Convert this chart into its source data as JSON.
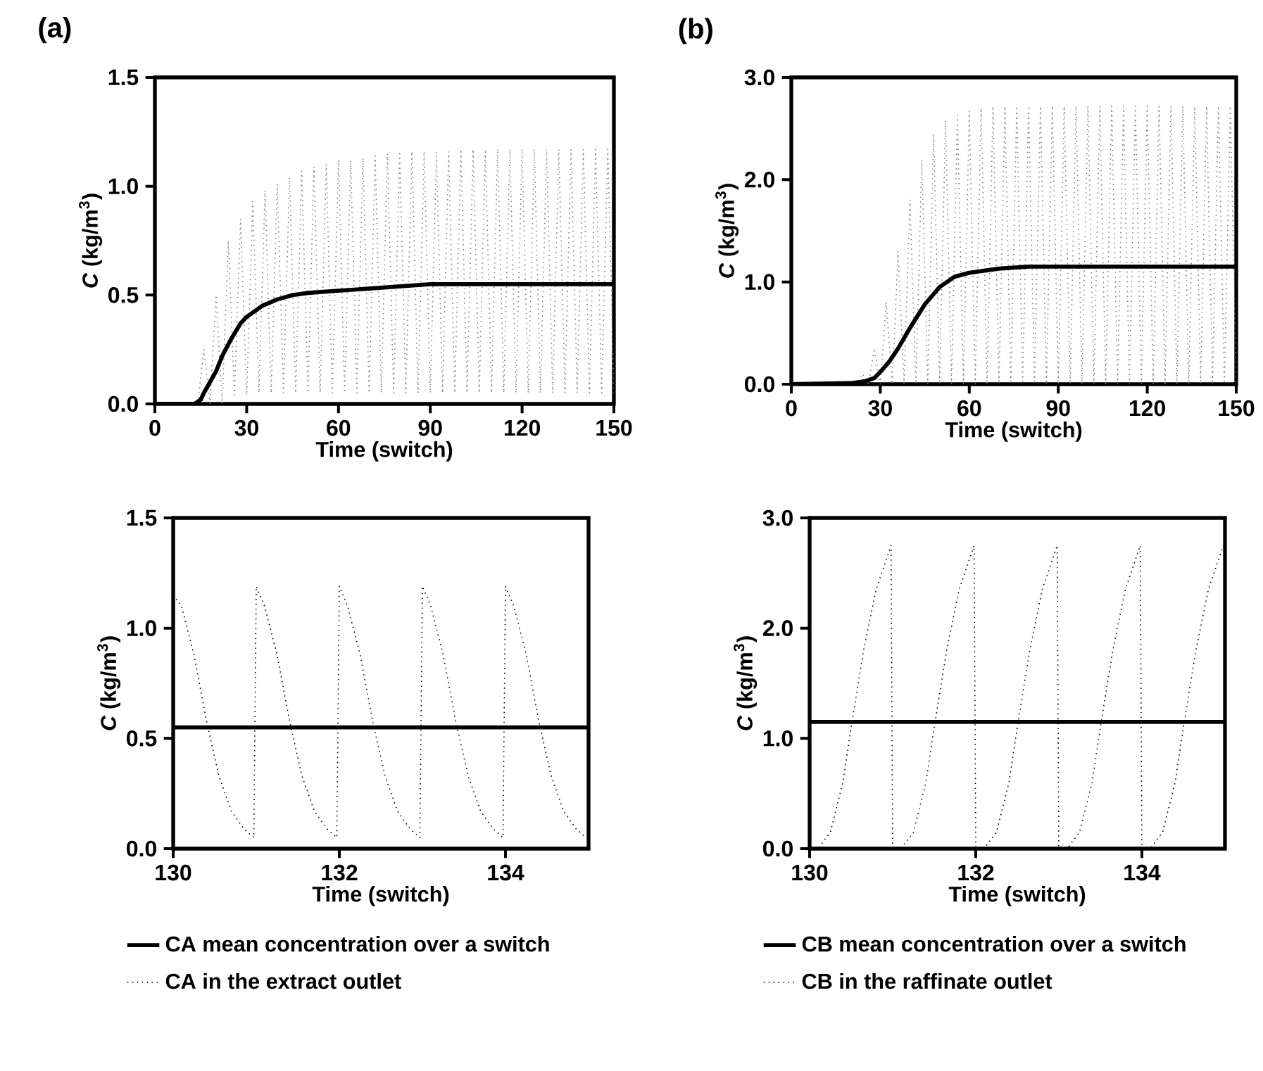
{
  "chart_data": [
    {
      "type": "line",
      "title": "(a)",
      "xlabel": "Time (switch)",
      "ylabel": "*C* (kg/m$^{3}$)",
      "xlim": [
        0,
        150
      ],
      "ylim": [
        0,
        1.5
      ],
      "xticks": [
        0,
        30,
        60,
        90,
        120,
        150
      ],
      "yticks": [
        {
          "value": 0,
          "label": "0.0"
        },
        {
          "value": 0.5,
          "label": "0.5"
        },
        {
          "value": 1,
          "label": "1.0"
        },
        {
          "value": 1.5,
          "label": "1.5"
        }
      ],
      "series": [
        {
          "color": "#808080",
          "line_style": "dotted",
          "x": [
            0,
            2,
            4,
            6,
            8,
            10,
            12,
            14,
            16,
            18,
            20,
            22,
            24,
            26,
            28,
            30,
            32,
            34,
            36,
            38,
            40,
            42,
            44,
            46,
            48,
            50,
            52,
            54,
            56,
            58,
            60,
            62,
            64,
            66,
            68,
            70,
            72,
            74,
            76,
            78,
            80,
            82,
            84,
            86,
            88,
            90,
            92,
            94,
            96,
            98,
            100,
            102,
            104,
            106,
            108,
            110,
            112,
            114,
            116,
            118,
            120,
            122,
            124,
            126,
            128,
            130,
            132,
            134,
            136,
            138,
            140,
            142,
            144,
            146,
            148,
            150
          ],
          "values": [
            0,
            0,
            0,
            0,
            0,
            0,
            0,
            0,
            0.25,
            0,
            0.5,
            0,
            0.75,
            0.04,
            0.85,
            0.04,
            0.93,
            0.05,
            0.98,
            0.05,
            1.01,
            0.05,
            1.04,
            0.05,
            1.07,
            0.05,
            1.09,
            0.05,
            1.1,
            0.05,
            1.12,
            0.05,
            1.12,
            0.05,
            1.13,
            0.05,
            1.14,
            0.05,
            1.15,
            0.05,
            1.15,
            0.05,
            1.16,
            0.05,
            1.16,
            0.05,
            1.16,
            0.05,
            1.16,
            0.05,
            1.17,
            0.05,
            1.17,
            0.05,
            1.17,
            0.05,
            1.17,
            0.05,
            1.17,
            0.05,
            1.17,
            0.05,
            1.17,
            0.05,
            1.17,
            0.05,
            1.17,
            0.05,
            1.17,
            0.05,
            1.17,
            0.05,
            1.17,
            0.05,
            1.17,
            0.05
          ]
        },
        {
          "color": "#000000",
          "line_style": "solid",
          "x": [
            0,
            13,
            15,
            16,
            18,
            20,
            22,
            25,
            28,
            30,
            35,
            40,
            45,
            50,
            60,
            70,
            80,
            90,
            120,
            150
          ],
          "values": [
            0,
            0,
            0.02,
            0.05,
            0.1,
            0.15,
            0.22,
            0.3,
            0.37,
            0.4,
            0.45,
            0.48,
            0.5,
            0.51,
            0.52,
            0.53,
            0.54,
            0.55,
            0.55,
            0.55
          ]
        }
      ]
    },
    {
      "type": "line",
      "title": "(b)",
      "xlabel": "Time (switch)",
      "ylabel": "*C* (kg/m$^{3}$)",
      "xlim": [
        0,
        150
      ],
      "ylim": [
        0,
        3
      ],
      "xticks": [
        0,
        30,
        60,
        90,
        120,
        150
      ],
      "yticks": [
        {
          "value": 0,
          "label": "0.0"
        },
        {
          "value": 1,
          "label": "1.0"
        },
        {
          "value": 2,
          "label": "2.0"
        },
        {
          "value": 3,
          "label": "3.0"
        }
      ],
      "series": [
        {
          "color": "#808080",
          "line_style": "dotted",
          "x": [
            0,
            2,
            4,
            6,
            8,
            10,
            12,
            14,
            16,
            18,
            20,
            22,
            24,
            26,
            28,
            30,
            32,
            34,
            36,
            38,
            40,
            42,
            44,
            46,
            48,
            50,
            52,
            54,
            56,
            58,
            60,
            62,
            64,
            66,
            68,
            70,
            72,
            74,
            76,
            78,
            80,
            82,
            84,
            86,
            88,
            90,
            92,
            94,
            96,
            98,
            100,
            102,
            104,
            106,
            108,
            110,
            112,
            114,
            116,
            118,
            120,
            122,
            124,
            126,
            128,
            130,
            132,
            134,
            136,
            138,
            140,
            142,
            144,
            146,
            148,
            150
          ],
          "values": [
            0,
            0,
            0,
            0,
            0,
            0,
            0,
            0,
            0,
            0,
            0,
            0,
            0.1,
            0,
            0.35,
            0,
            0.8,
            0,
            1.3,
            0,
            1.8,
            0,
            2.2,
            0,
            2.45,
            0,
            2.58,
            0,
            2.63,
            0,
            2.67,
            0,
            2.7,
            0,
            2.72,
            0,
            2.72,
            0,
            2.72,
            0,
            2.72,
            0,
            2.72,
            0,
            2.72,
            0,
            2.72,
            0,
            2.72,
            0,
            2.72,
            0,
            2.72,
            0,
            2.72,
            0,
            2.72,
            0,
            2.72,
            0,
            2.72,
            0,
            2.72,
            0,
            2.72,
            0,
            2.72,
            0,
            2.72,
            0,
            2.72,
            0,
            2.72,
            0,
            2.72,
            0
          ]
        },
        {
          "color": "#000000",
          "line_style": "solid",
          "x": [
            0,
            20,
            25,
            28,
            30,
            33,
            36,
            40,
            45,
            50,
            55,
            60,
            70,
            80,
            100,
            150
          ],
          "values": [
            0,
            0.01,
            0.03,
            0.06,
            0.12,
            0.22,
            0.35,
            0.55,
            0.78,
            0.95,
            1.05,
            1.09,
            1.13,
            1.15,
            1.15,
            1.15
          ]
        }
      ]
    },
    {
      "type": "line",
      "xlabel": "Time (switch)",
      "ylabel": "*C* (kg/m$^{3}$)",
      "xlim": [
        130,
        135
      ],
      "ylim": [
        0,
        1.5
      ],
      "xticks": [
        130,
        132,
        134
      ],
      "yticks": [
        {
          "value": 0,
          "label": "0.0"
        },
        {
          "value": 0.5,
          "label": "0.5"
        },
        {
          "value": 1,
          "label": "1.0"
        },
        {
          "value": 1.5,
          "label": "1.5"
        }
      ],
      "legend": "bottom",
      "series": [
        {
          "name": "CA mean concentration over a switch",
          "color": "#000000",
          "line_style": "solid",
          "x": [
            130,
            135
          ],
          "values": [
            0.55,
            0.55
          ]
        },
        {
          "name": "CA in the extract outlet",
          "color": "#000000",
          "line_style": "dotted",
          "x": [
            130,
            130.1,
            130.25,
            130.4,
            130.55,
            130.7,
            130.85,
            130.97,
            131,
            131.1,
            131.25,
            131.4,
            131.55,
            131.7,
            131.85,
            131.97,
            132,
            132.1,
            132.25,
            132.4,
            132.55,
            132.7,
            132.85,
            132.97,
            133,
            133.1,
            133.25,
            133.4,
            133.55,
            133.7,
            133.85,
            133.97,
            134,
            134.1,
            134.25,
            134.4,
            134.55,
            134.7,
            134.85,
            134.97
          ],
          "values": [
            1.15,
            1.1,
            0.88,
            0.58,
            0.33,
            0.17,
            0.09,
            0.05,
            1.19,
            1.1,
            0.88,
            0.58,
            0.33,
            0.17,
            0.09,
            0.05,
            1.19,
            1.1,
            0.88,
            0.58,
            0.33,
            0.17,
            0.09,
            0.05,
            1.19,
            1.1,
            0.88,
            0.58,
            0.33,
            0.17,
            0.09,
            0.05,
            1.19,
            1.1,
            0.88,
            0.58,
            0.33,
            0.17,
            0.09,
            0.05
          ]
        }
      ]
    },
    {
      "type": "line",
      "xlabel": "Time (switch)",
      "ylabel": "*C* (kg/m$^{3}$)",
      "xlim": [
        130,
        135
      ],
      "ylim": [
        0,
        3
      ],
      "xticks": [
        130,
        132,
        134
      ],
      "yticks": [
        {
          "value": 0,
          "label": "0.0"
        },
        {
          "value": 1,
          "label": "1.0"
        },
        {
          "value": 2,
          "label": "2.0"
        },
        {
          "value": 3,
          "label": "3.0"
        }
      ],
      "legend": "bottom",
      "series": [
        {
          "name": "CB mean concentration over a switch",
          "color": "#000000",
          "line_style": "solid",
          "x": [
            130,
            135
          ],
          "values": [
            1.15,
            1.15
          ]
        },
        {
          "name": "CB in the raffinate outlet",
          "color": "#000000",
          "line_style": "dotted",
          "x": [
            130,
            130.1,
            130.25,
            130.4,
            130.5,
            130.65,
            130.8,
            130.98,
            131,
            131.1,
            131.25,
            131.4,
            131.5,
            131.65,
            131.8,
            131.98,
            132,
            132.1,
            132.25,
            132.4,
            132.5,
            132.65,
            132.8,
            132.98,
            133,
            133.1,
            133.25,
            133.4,
            133.5,
            133.65,
            133.8,
            133.98,
            134,
            134.1,
            134.25,
            134.4,
            134.5,
            134.65,
            134.8,
            134.98
          ],
          "values": [
            0,
            0,
            0.15,
            0.6,
            1.1,
            1.8,
            2.35,
            2.75,
            0,
            0,
            0.15,
            0.6,
            1.1,
            1.8,
            2.35,
            2.75,
            0,
            0,
            0.15,
            0.6,
            1.1,
            1.8,
            2.35,
            2.75,
            0,
            0,
            0.15,
            0.6,
            1.1,
            1.8,
            2.35,
            2.75,
            0,
            0,
            0.15,
            0.6,
            1.1,
            1.8,
            2.35,
            2.75
          ]
        }
      ]
    }
  ]
}
